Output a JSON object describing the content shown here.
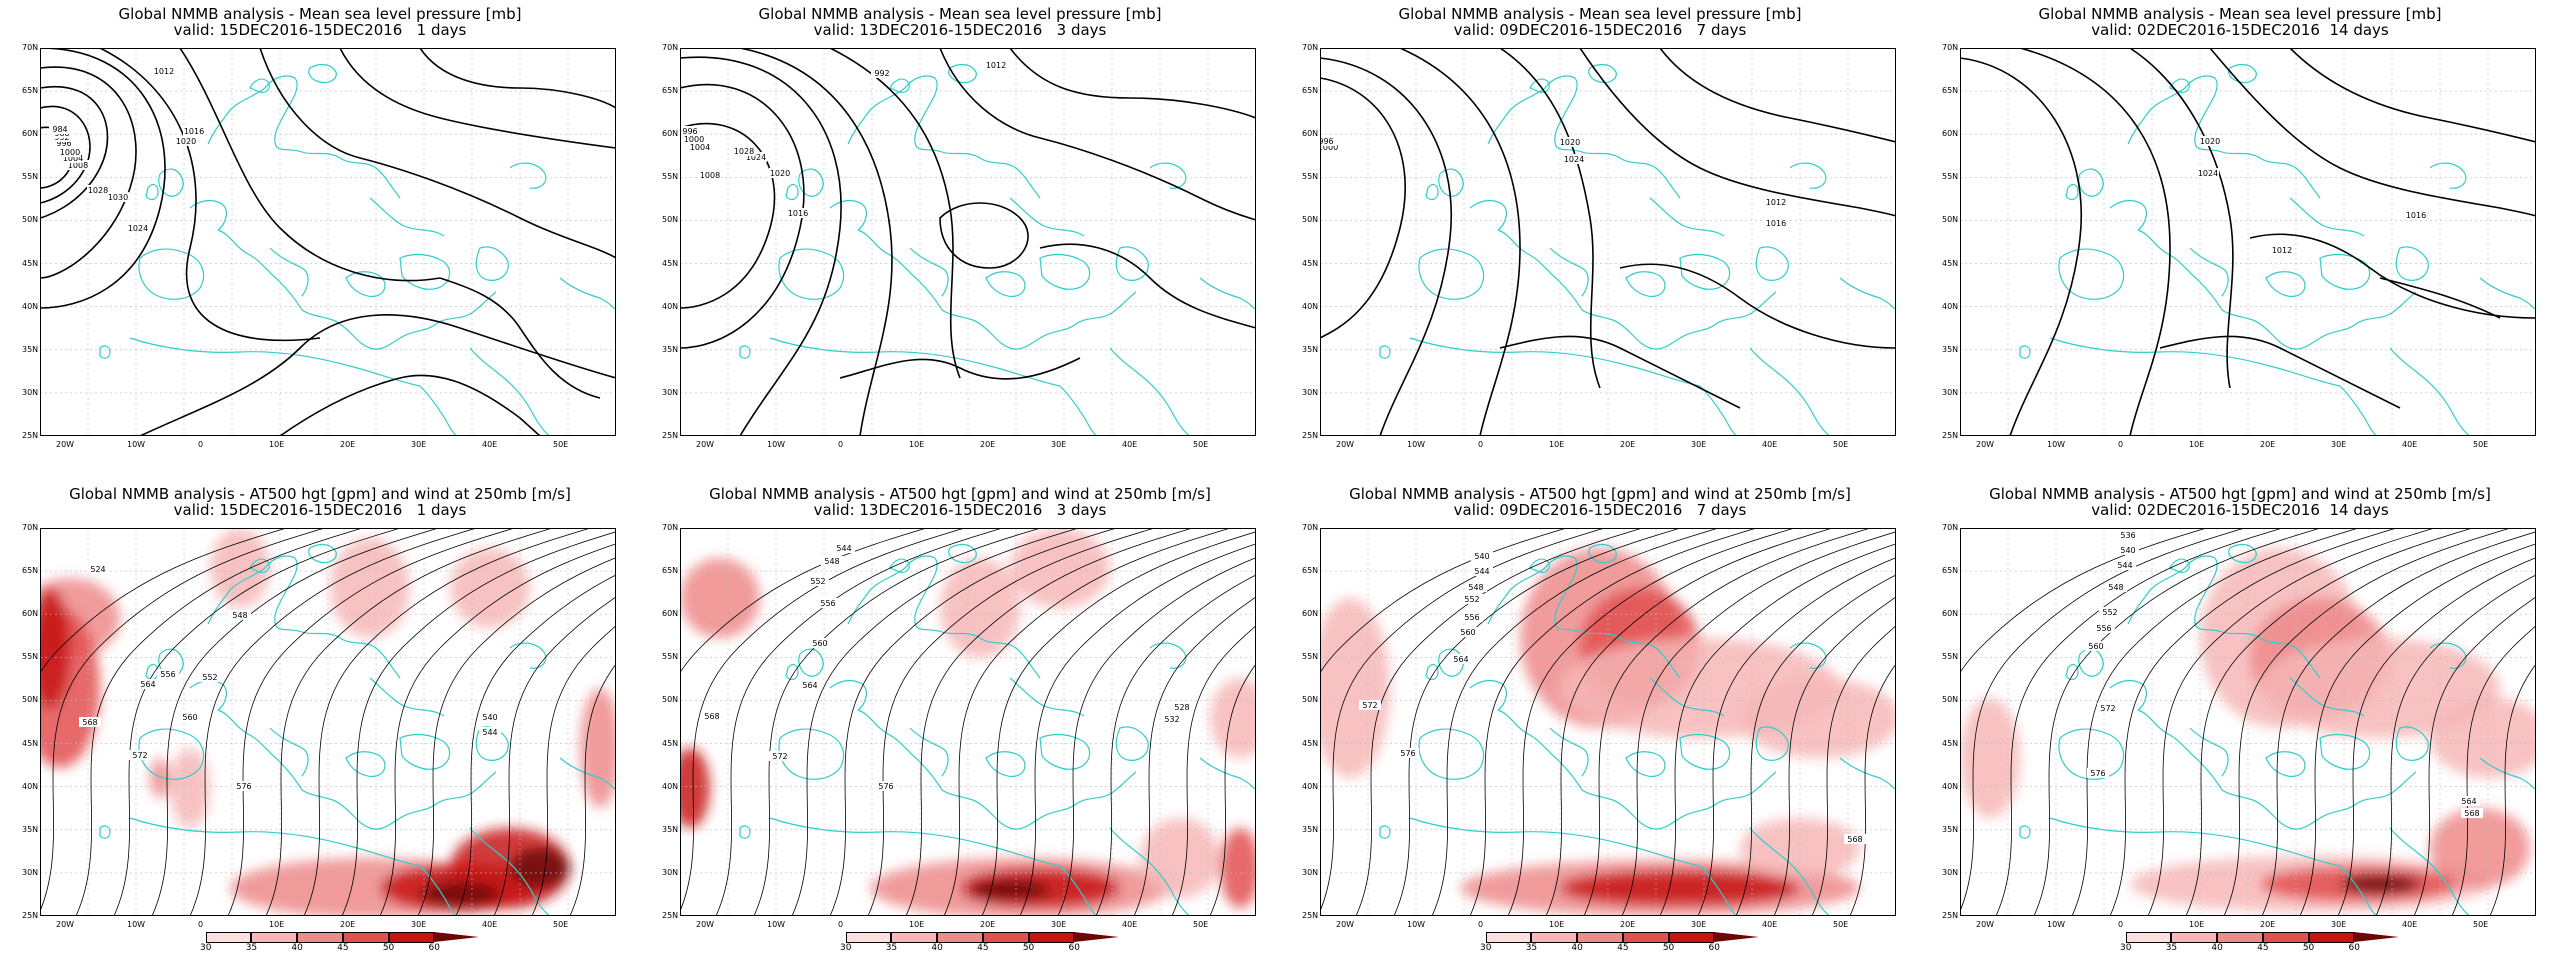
{
  "colors": {
    "coast": "#33cccc",
    "contour": "#000000",
    "shade": [
      "#ffffff",
      "#fce0e0",
      "#f7b7b7",
      "#ef8a8a",
      "#e35050",
      "#c81414",
      "#6b0606"
    ]
  },
  "lon_labels": [
    "20W",
    "10W",
    "0",
    "10E",
    "20E",
    "30E",
    "40E",
    "50E"
  ],
  "lat_labels": [
    "70N",
    "65N",
    "60N",
    "55N",
    "50N",
    "45N",
    "40N",
    "35N",
    "30N",
    "25N"
  ],
  "colorbar_labels": [
    "30",
    "35",
    "40",
    "45",
    "50",
    "60"
  ],
  "rows": [
    {
      "row_name": "mslp",
      "panels": [
        {
          "title": "Global NMMB analysis - Mean sea level pressure [mb]",
          "subtitle": "valid: 15DEC2016-15DEC2016   1 days",
          "contour_labels": [
            "1012",
            "1016",
            "1020",
            "1024",
            "1028",
            "1030",
            "1008",
            "1004",
            "1000",
            "996",
            "992",
            "988",
            "984"
          ]
        },
        {
          "title": "Global NMMB analysis - Mean sea level pressure [mb]",
          "subtitle": "valid: 13DEC2016-15DEC2016   3 days",
          "contour_labels": [
            "992",
            "1012",
            "1016",
            "1020",
            "1024",
            "1028",
            "1008",
            "1004",
            "1000",
            "996"
          ]
        },
        {
          "title": "Global NMMB analysis - Mean sea level pressure [mb]",
          "subtitle": "valid: 09DEC2016-15DEC2016   7 days",
          "contour_labels": [
            "1012",
            "1016",
            "1020",
            "1024",
            "1000",
            "996"
          ]
        },
        {
          "title": "Global NMMB analysis - Mean sea level pressure [mb]",
          "subtitle": "valid: 02DEC2016-15DEC2016  14 days",
          "contour_labels": [
            "1012",
            "1016",
            "1020",
            "1024"
          ]
        }
      ]
    },
    {
      "row_name": "at500",
      "panels": [
        {
          "title": "Global NMMB analysis - AT500 hgt [gpm] and wind at 250mb [m/s]",
          "subtitle": "valid: 15DEC2016-15DEC2016   1 days",
          "contour_labels": [
            "524",
            "548",
            "552",
            "556",
            "560",
            "564",
            "568",
            "572",
            "576",
            "540",
            "544"
          ]
        },
        {
          "title": "Global NMMB analysis - AT500 hgt [gpm] and wind at 250mb [m/s]",
          "subtitle": "valid: 13DEC2016-15DEC2016   3 days",
          "contour_labels": [
            "544",
            "548",
            "552",
            "556",
            "560",
            "564",
            "568",
            "572",
            "576",
            "528",
            "532"
          ]
        },
        {
          "title": "Global NMMB analysis - AT500 hgt [gpm] and wind at 250mb [m/s]",
          "subtitle": "valid: 09DEC2016-15DEC2016   7 days",
          "contour_labels": [
            "540",
            "544",
            "548",
            "552",
            "556",
            "560",
            "564",
            "568",
            "572",
            "576"
          ]
        },
        {
          "title": "Global NMMB analysis - AT500 hgt [gpm] and wind at 250mb [m/s]",
          "subtitle": "valid: 02DEC2016-15DEC2016  14 days",
          "contour_labels": [
            "536",
            "540",
            "544",
            "548",
            "552",
            "556",
            "560",
            "564",
            "568",
            "572",
            "576"
          ]
        }
      ]
    }
  ]
}
